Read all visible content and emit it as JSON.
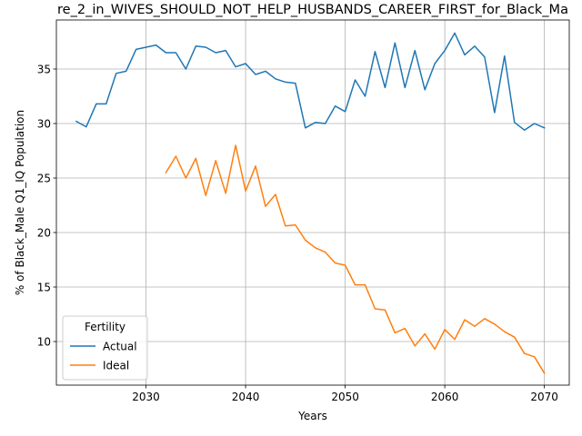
{
  "chart_data": {
    "type": "line",
    "title": "re_2_in_WIVES_SHOULD_NOT_HELP_HUSBANDS_CAREER_FIRST_for_Black_Ma",
    "xlabel": "Years",
    "ylabel": "% of Black_Male Q1_IQ Population",
    "xlim": [
      2021,
      2072.5
    ],
    "ylim": [
      6,
      39.5
    ],
    "xticks": [
      2030,
      2040,
      2050,
      2060,
      2070
    ],
    "yticks": [
      10,
      15,
      20,
      25,
      30,
      35
    ],
    "grid": true,
    "legend": {
      "title": "Fertility",
      "placement": "lower-left"
    },
    "series": [
      {
        "name": "Actual",
        "color": "#1f77b4",
        "x": [
          2023,
          2024,
          2025,
          2026,
          2027,
          2028,
          2029,
          2030,
          2031,
          2032,
          2033,
          2034,
          2035,
          2036,
          2037,
          2038,
          2039,
          2040,
          2041,
          2042,
          2043,
          2044,
          2045,
          2046,
          2047,
          2048,
          2049,
          2050,
          2051,
          2052,
          2053,
          2054,
          2055,
          2056,
          2057,
          2058,
          2059,
          2060,
          2061,
          2062,
          2063,
          2064,
          2065,
          2066,
          2067,
          2068,
          2069,
          2070
        ],
        "y": [
          30.2,
          29.7,
          31.8,
          31.8,
          34.6,
          34.8,
          36.8,
          37.0,
          37.2,
          36.5,
          36.5,
          35.0,
          37.1,
          37.0,
          36.5,
          36.7,
          35.2,
          35.5,
          34.5,
          34.8,
          34.1,
          33.8,
          33.7,
          29.6,
          30.1,
          30.0,
          31.6,
          31.1,
          34.0,
          32.5,
          36.6,
          33.3,
          37.4,
          33.3,
          36.7,
          33.1,
          35.5,
          36.7,
          38.3,
          36.3,
          37.1,
          36.1,
          31.0,
          36.2,
          30.1,
          29.4,
          30.0,
          29.6
        ]
      },
      {
        "name": "Ideal",
        "color": "#ff7f0e",
        "x": [
          2032,
          2033,
          2034,
          2035,
          2036,
          2037,
          2038,
          2039,
          2040,
          2041,
          2042,
          2043,
          2044,
          2045,
          2046,
          2047,
          2048,
          2049,
          2050,
          2051,
          2052,
          2053,
          2054,
          2055,
          2056,
          2057,
          2058,
          2059,
          2060,
          2061,
          2062,
          2063,
          2064,
          2065,
          2066,
          2067,
          2068,
          2069,
          2070
        ],
        "y": [
          25.5,
          27.0,
          25.0,
          26.8,
          23.4,
          26.6,
          23.6,
          28.0,
          23.8,
          26.1,
          22.4,
          23.5,
          20.6,
          20.7,
          19.3,
          18.6,
          18.2,
          17.2,
          17.0,
          15.2,
          15.2,
          13.0,
          12.9,
          10.8,
          11.2,
          9.6,
          10.7,
          9.3,
          11.1,
          10.2,
          12.0,
          11.4,
          12.1,
          11.6,
          10.9,
          10.4,
          8.9,
          8.6,
          7.1
        ]
      }
    ]
  }
}
